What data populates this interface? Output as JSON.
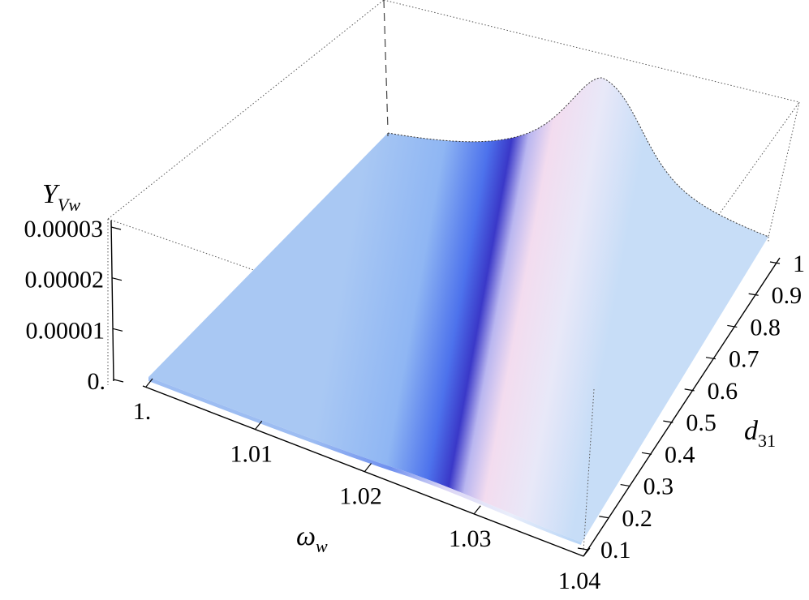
{
  "chart_data": {
    "type": "surface3d",
    "z_axis": {
      "label_main": "Y",
      "label_sub": "Vw",
      "ticks": [
        {
          "value": 0,
          "label": "0."
        },
        {
          "value": 1e-05,
          "label": "0.00001"
        },
        {
          "value": 2e-05,
          "label": "0.00002"
        },
        {
          "value": 3e-05,
          "label": "0.00003"
        }
      ],
      "range": [
        0,
        3e-05
      ]
    },
    "x_axis": {
      "label_main": "ω",
      "label_sub": "w",
      "ticks": [
        {
          "value": 1.0,
          "label": "1."
        },
        {
          "value": 1.01,
          "label": "1.01"
        },
        {
          "value": 1.02,
          "label": "1.02"
        },
        {
          "value": 1.03,
          "label": "1.03"
        },
        {
          "value": 1.04,
          "label": "1.04"
        }
      ],
      "range": [
        1.0,
        1.04
      ]
    },
    "y_axis": {
      "label_main": "d",
      "label_sub": "31",
      "ticks": [
        {
          "value": 0.1,
          "label": "0.1"
        },
        {
          "value": 0.2,
          "label": "0.2"
        },
        {
          "value": 0.3,
          "label": "0.3"
        },
        {
          "value": 0.4,
          "label": "0.4"
        },
        {
          "value": 0.5,
          "label": "0.5"
        },
        {
          "value": 0.6,
          "label": "0.6"
        },
        {
          "value": 0.7,
          "label": "0.7"
        },
        {
          "value": 0.8,
          "label": "0.8"
        },
        {
          "value": 0.9,
          "label": "0.9"
        },
        {
          "value": 1.0,
          "label": "1"
        }
      ],
      "range": [
        0.1,
        1.0
      ]
    },
    "surface": {
      "peak_omega": 1.025,
      "peak_max_value": 3.5e-05,
      "peak_at_d31": 1.0,
      "colors": {
        "flat": "#a9c8f3",
        "ridge_left": "#3f5fe8",
        "ridge_core": "#3a34c8",
        "ridge_right": "#f4dff0",
        "far_right": "#cfe4f8"
      }
    },
    "grid": false,
    "box": true
  }
}
